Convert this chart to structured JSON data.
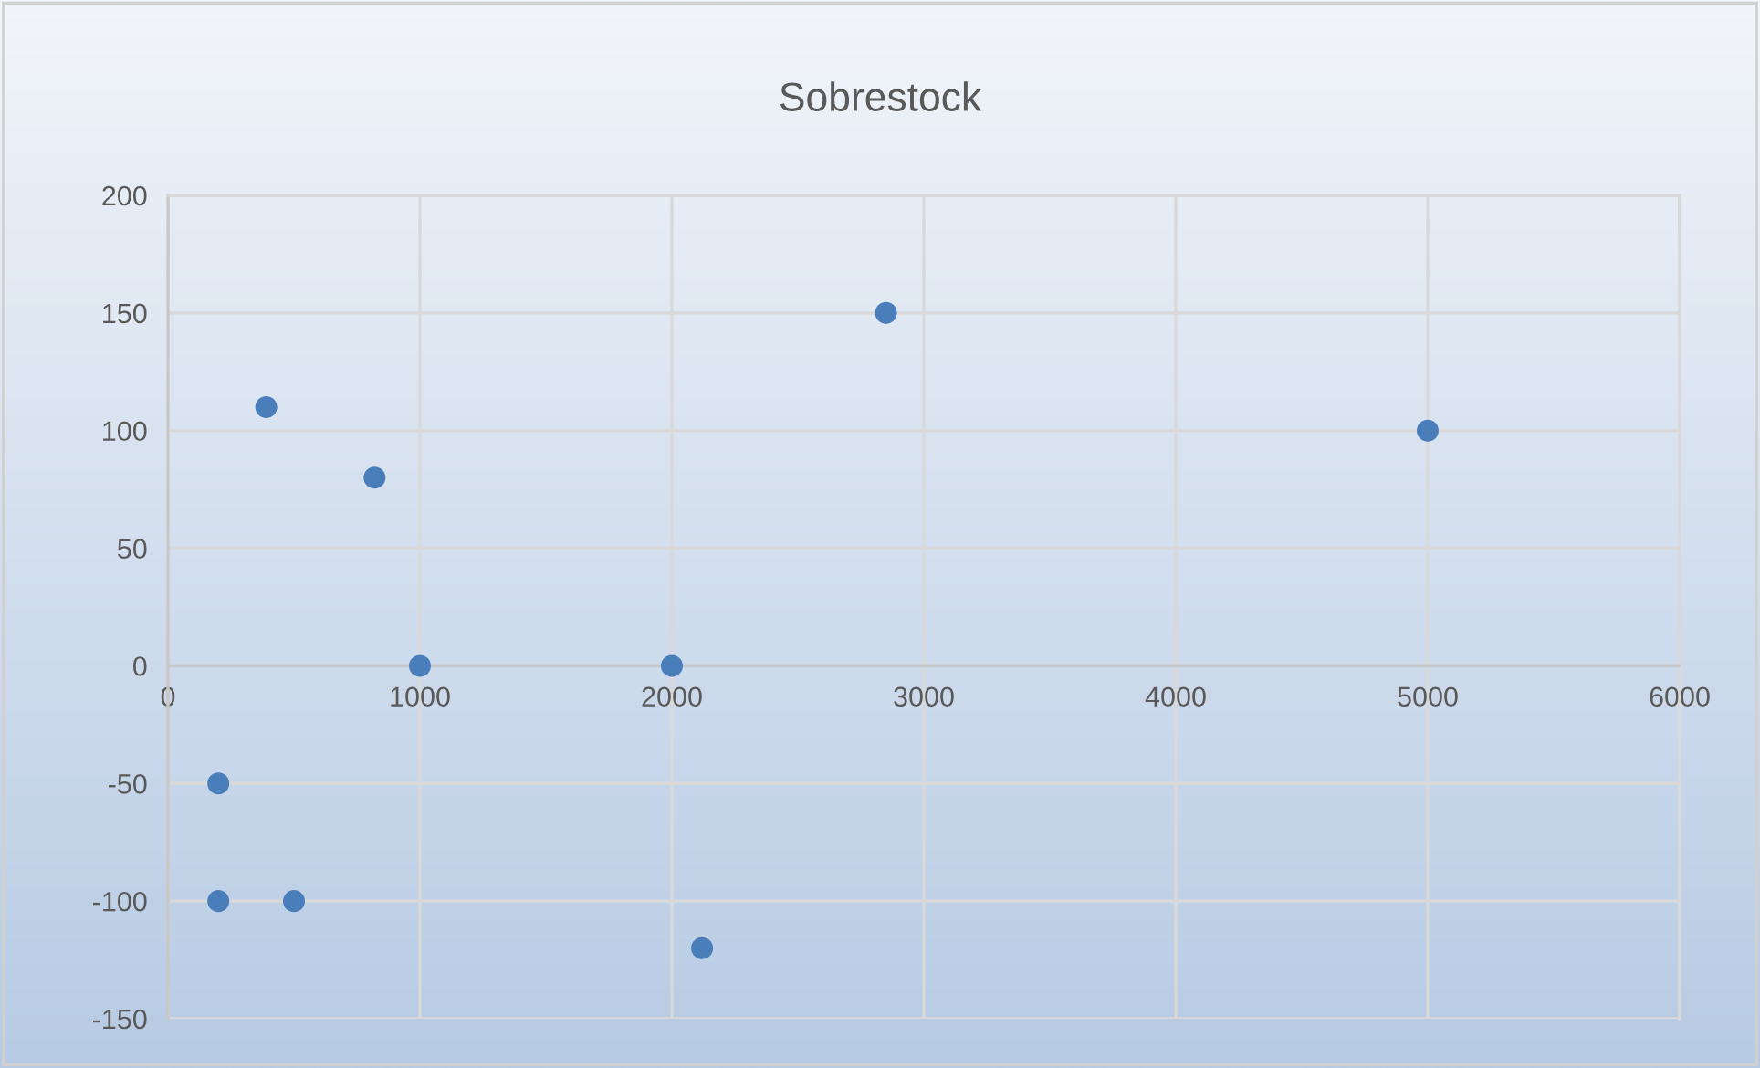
{
  "chart_data": {
    "type": "scatter",
    "title": "Sobrestock",
    "series": [
      {
        "color": "#4a7ebb",
        "x": [
          390,
          820,
          1000,
          2000,
          2850,
          5000,
          200,
          200,
          500,
          2120
        ],
        "values": [
          110,
          80,
          0,
          0,
          150,
          100,
          -50,
          -100,
          -100,
          -120
        ]
      }
    ],
    "xlim": [
      0,
      6000
    ],
    "xticks": [
      0,
      1000,
      2000,
      3000,
      4000,
      5000,
      6000
    ],
    "ylim": [
      -150,
      200
    ],
    "yticks": [
      -150,
      -100,
      -50,
      0,
      50,
      100,
      150,
      200
    ],
    "grid": true,
    "marker": "circle"
  }
}
